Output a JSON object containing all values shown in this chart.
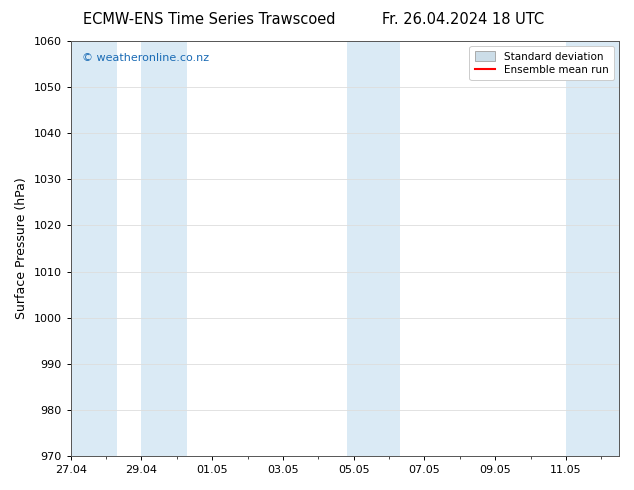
{
  "title_left": "ECMW-ENS Time Series Trawscoed",
  "title_right": "Fr. 26.04.2024 18 UTC",
  "ylabel": "Surface Pressure (hPa)",
  "ylim": [
    970,
    1060
  ],
  "yticks": [
    970,
    980,
    990,
    1000,
    1010,
    1020,
    1030,
    1040,
    1050,
    1060
  ],
  "xtick_labels": [
    "27.04",
    "29.04",
    "01.05",
    "03.05",
    "05.05",
    "07.05",
    "09.05",
    "11.05"
  ],
  "xtick_positions": [
    0,
    2,
    4,
    6,
    8,
    10,
    12,
    14
  ],
  "x_min": 0,
  "x_max": 15.5,
  "watermark": "© weatheronline.co.nz",
  "watermark_color": "#1a6bb5",
  "band_color": "#daeaf5",
  "band_ranges": [
    [
      0.0,
      1.3
    ],
    [
      2.0,
      3.3
    ],
    [
      7.8,
      9.3
    ],
    [
      14.0,
      15.5
    ]
  ],
  "legend_std_label": "Standard deviation",
  "legend_mean_label": "Ensemble mean run",
  "legend_std_facecolor": "#ccdde8",
  "legend_std_edgecolor": "#aaaaaa",
  "legend_mean_color": "#ff0000",
  "background_color": "#ffffff",
  "plot_bg_color": "#ffffff",
  "grid_color": "#dddddd",
  "title_fontsize": 10.5,
  "tick_fontsize": 8,
  "ylabel_fontsize": 9,
  "watermark_fontsize": 8
}
